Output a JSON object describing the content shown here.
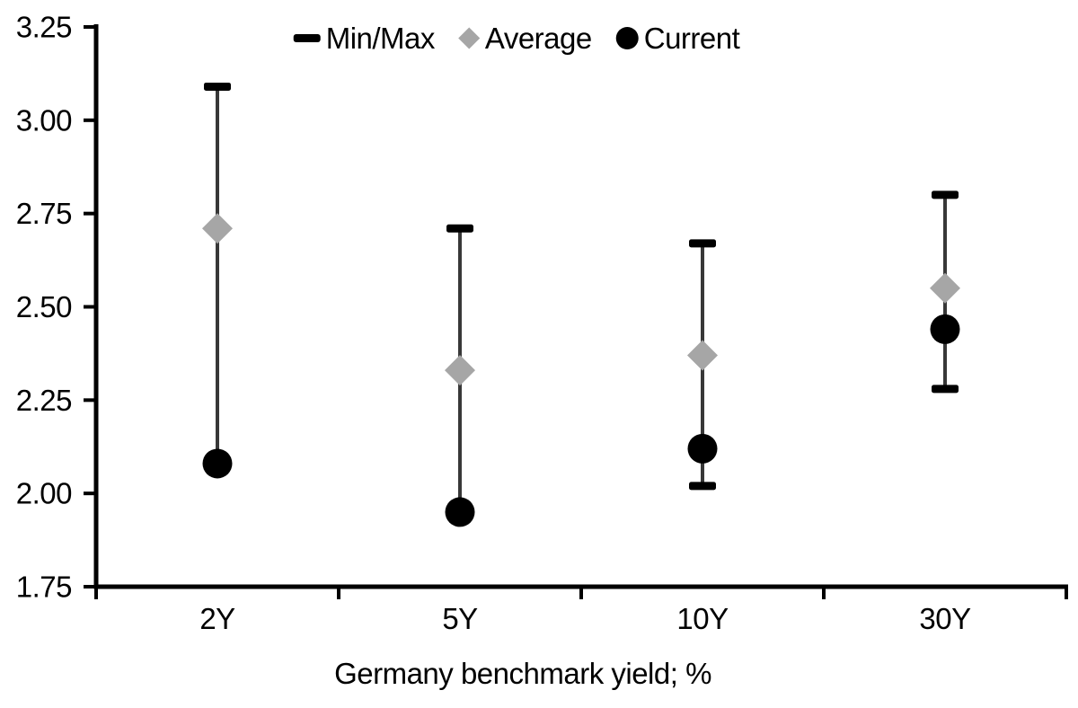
{
  "chart_data": {
    "type": "scatter",
    "subtype": "min-max-range-with-markers",
    "title": "",
    "xlabel": "Germany benchmark yield; %",
    "ylabel": "",
    "categories": [
      "2Y",
      "5Y",
      "10Y",
      "30Y"
    ],
    "ylim": [
      1.75,
      3.25
    ],
    "ytick_step": 0.25,
    "ytick_labels": [
      "3.25",
      "3.00",
      "2.75",
      "2.50",
      "2.25",
      "2.00",
      "1.75"
    ],
    "grid": false,
    "legend_position": "top-center",
    "legend": [
      {
        "label": "Min/Max",
        "marker": "dash",
        "color": "#000000"
      },
      {
        "label": "Average",
        "marker": "diamond",
        "color": "#a6a6a6"
      },
      {
        "label": "Current",
        "marker": "circle",
        "color": "#000000"
      }
    ],
    "series": [
      {
        "name": "Min/Max",
        "type": "range",
        "min": [
          2.08,
          1.95,
          2.02,
          2.28
        ],
        "max": [
          3.09,
          2.71,
          2.67,
          2.8
        ]
      },
      {
        "name": "Average",
        "type": "point",
        "marker": "diamond",
        "values": [
          2.71,
          2.33,
          2.37,
          2.55
        ]
      },
      {
        "name": "Current",
        "type": "point",
        "marker": "circle",
        "values": [
          2.08,
          1.95,
          2.12,
          2.44
        ]
      }
    ],
    "colors": {
      "axis": "#000000",
      "text": "#000000",
      "range_line": "#383838",
      "cap": "#000000",
      "average_marker": "#a6a6a6",
      "current_marker": "#000000"
    }
  }
}
